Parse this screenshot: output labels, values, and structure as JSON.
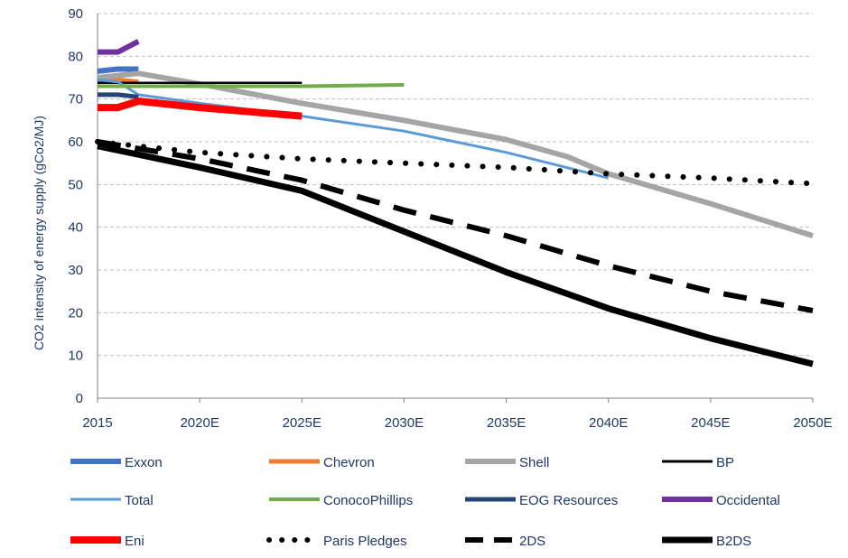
{
  "chart_data": {
    "type": "line",
    "title": "",
    "xlabel": "",
    "ylabel": "CO2 intensity of energy supply (gCo2/MJ)",
    "xlim": [
      2015,
      2050
    ],
    "ylim": [
      0,
      90
    ],
    "y_ticks": [
      0,
      10,
      20,
      30,
      40,
      50,
      60,
      70,
      80,
      90
    ],
    "x_ticks": [
      {
        "value": 2015,
        "label": "2015"
      },
      {
        "value": 2020,
        "label": "2020E"
      },
      {
        "value": 2025,
        "label": "2025E"
      },
      {
        "value": 2030,
        "label": "2030E"
      },
      {
        "value": 2035,
        "label": "2035E"
      },
      {
        "value": 2040,
        "label": "2040E"
      },
      {
        "value": 2045,
        "label": "2045E"
      },
      {
        "value": 2050,
        "label": "2050E"
      }
    ],
    "grid": "horizontal dashed",
    "legend_position": "bottom",
    "series": [
      {
        "name": "Exxon",
        "color": "#4472c4",
        "width": 6,
        "dash": "solid",
        "points": [
          [
            2015,
            76.5
          ],
          [
            2016,
            77
          ],
          [
            2017,
            77
          ]
        ]
      },
      {
        "name": "Chevron",
        "color": "#ed7d31",
        "width": 5,
        "dash": "solid",
        "points": [
          [
            2015,
            74.5
          ],
          [
            2016,
            74.5
          ],
          [
            2017,
            74
          ]
        ]
      },
      {
        "name": "Shell",
        "color": "#a5a5a5",
        "width": 6,
        "dash": "solid",
        "points": [
          [
            2015,
            75
          ],
          [
            2017,
            76
          ],
          [
            2020,
            73.5
          ],
          [
            2025,
            69
          ],
          [
            2030,
            65
          ],
          [
            2035,
            60.5
          ],
          [
            2038,
            56.5
          ],
          [
            2040,
            52.5
          ],
          [
            2045,
            45.5
          ],
          [
            2050,
            38
          ]
        ]
      },
      {
        "name": "BP",
        "color": "#000000",
        "width": 2.5,
        "dash": "solid",
        "points": [
          [
            2015,
            73.8
          ],
          [
            2025,
            73.8
          ]
        ]
      },
      {
        "name": "Total",
        "color": "#5b9bd5",
        "width": 3,
        "dash": "solid",
        "points": [
          [
            2015,
            74.5
          ],
          [
            2016,
            74
          ],
          [
            2017,
            71
          ],
          [
            2020,
            69
          ],
          [
            2025,
            66
          ],
          [
            2030,
            62.5
          ],
          [
            2035,
            57.5
          ],
          [
            2040,
            51.5
          ]
        ]
      },
      {
        "name": "ConocoPhillips",
        "color": "#70ad47",
        "width": 4,
        "dash": "solid",
        "points": [
          [
            2015,
            73
          ],
          [
            2020,
            73
          ],
          [
            2025,
            73
          ],
          [
            2030,
            73.3
          ]
        ]
      },
      {
        "name": "EOG Resources",
        "color": "#264478",
        "width": 5,
        "dash": "solid",
        "points": [
          [
            2015,
            71
          ],
          [
            2016,
            71
          ],
          [
            2017,
            70.5
          ]
        ]
      },
      {
        "name": "Occidental",
        "color": "#7030a0",
        "width": 6,
        "dash": "solid",
        "points": [
          [
            2015,
            81
          ],
          [
            2016,
            81
          ],
          [
            2017,
            83.5
          ]
        ]
      },
      {
        "name": "Eni",
        "color": "#ff0000",
        "width": 8,
        "dash": "solid",
        "points": [
          [
            2015,
            68
          ],
          [
            2016,
            68
          ],
          [
            2017,
            69.5
          ],
          [
            2020,
            68
          ],
          [
            2025,
            66
          ]
        ]
      },
      {
        "name": "Paris Pledges",
        "color": "#000000",
        "width": 6,
        "dash": "dotted",
        "points": [
          [
            2015,
            60
          ],
          [
            2020,
            57.5
          ],
          [
            2025,
            56
          ],
          [
            2030,
            55
          ],
          [
            2035,
            54
          ],
          [
            2040,
            52.5
          ],
          [
            2045,
            51.5
          ],
          [
            2050,
            50.2
          ]
        ]
      },
      {
        "name": "2DS",
        "color": "#000000",
        "width": 6,
        "dash": "dashed",
        "points": [
          [
            2015,
            60
          ],
          [
            2020,
            56
          ],
          [
            2025,
            51
          ],
          [
            2030,
            44
          ],
          [
            2035,
            38
          ],
          [
            2040,
            31
          ],
          [
            2045,
            25
          ],
          [
            2050,
            20.5
          ]
        ]
      },
      {
        "name": "B2DS",
        "color": "#000000",
        "width": 7,
        "dash": "solid",
        "points": [
          [
            2015,
            59
          ],
          [
            2020,
            54
          ],
          [
            2025,
            48.5
          ],
          [
            2030,
            39
          ],
          [
            2035,
            29.5
          ],
          [
            2040,
            21
          ],
          [
            2045,
            14
          ],
          [
            2050,
            8
          ]
        ]
      }
    ]
  }
}
